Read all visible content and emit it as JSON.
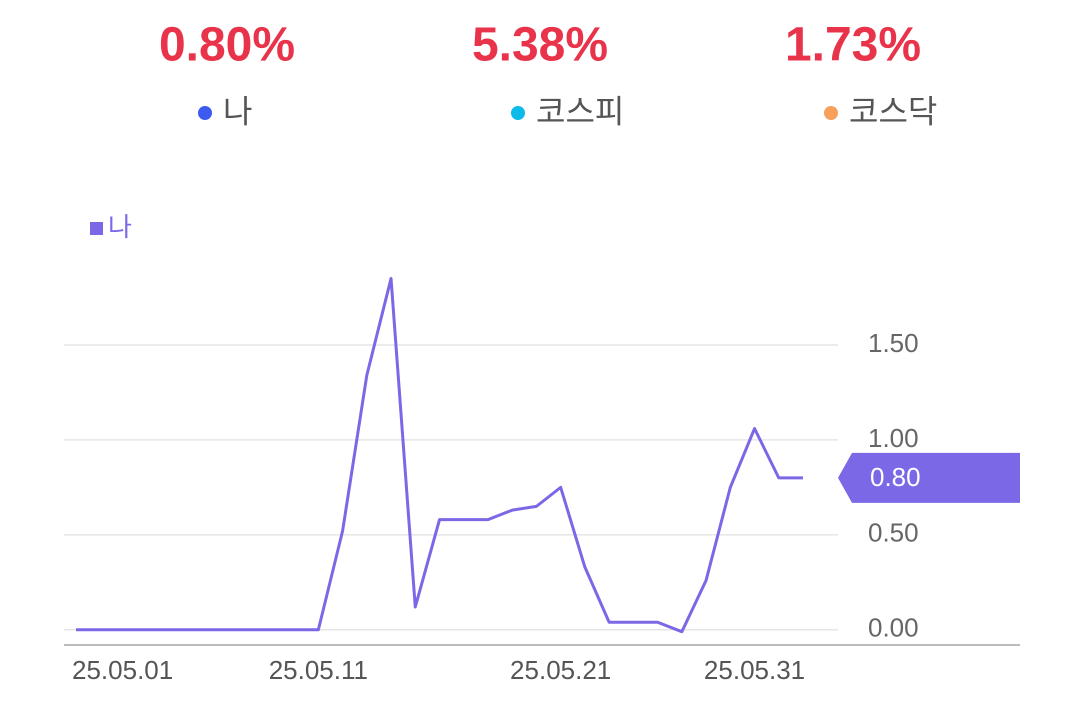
{
  "stats": [
    {
      "value": "0.80%",
      "label": "나",
      "color": "#3d5af1"
    },
    {
      "value": "5.38%",
      "label": "코스피",
      "color": "#0cbbe9"
    },
    {
      "value": "1.73%",
      "label": "코스닥",
      "color": "#f7a05c"
    }
  ],
  "chart_data": {
    "type": "line",
    "categories": [
      "25.05.01",
      null,
      null,
      null,
      null,
      null,
      null,
      null,
      null,
      null,
      "25.05.11",
      null,
      null,
      null,
      null,
      null,
      null,
      null,
      null,
      null,
      "25.05.21",
      null,
      null,
      null,
      null,
      null,
      null,
      null,
      "25.05.31",
      null,
      null
    ],
    "series": [
      {
        "name": "나",
        "color": "#7b68e6",
        "values": [
          0,
          0,
          0,
          0,
          0,
          0,
          0,
          0,
          0,
          0,
          0,
          0.52,
          1.34,
          1.85,
          0.12,
          0.58,
          0.58,
          0.58,
          0.63,
          0.65,
          0.75,
          0.33,
          0.04,
          0.04,
          0.04,
          -0.01,
          0.26,
          0.75,
          1.06,
          0.8,
          0.8
        ],
        "value_labels": [
          null,
          null,
          null,
          null,
          null,
          null,
          null,
          null,
          null,
          null,
          null,
          null,
          null,
          null,
          null,
          null,
          null,
          null,
          null,
          null,
          null,
          null,
          null,
          null,
          null,
          null,
          null,
          null,
          null,
          null,
          "0.80"
        ]
      }
    ],
    "ylim": [
      -0.08,
      2.0
    ],
    "yticks": [
      {
        "value": 0,
        "label": "0.00"
      },
      {
        "value": 0.5,
        "label": "0.50"
      },
      {
        "value": 1,
        "label": "1.00"
      },
      {
        "value": 1.5,
        "label": "1.50"
      }
    ],
    "grid": true
  }
}
